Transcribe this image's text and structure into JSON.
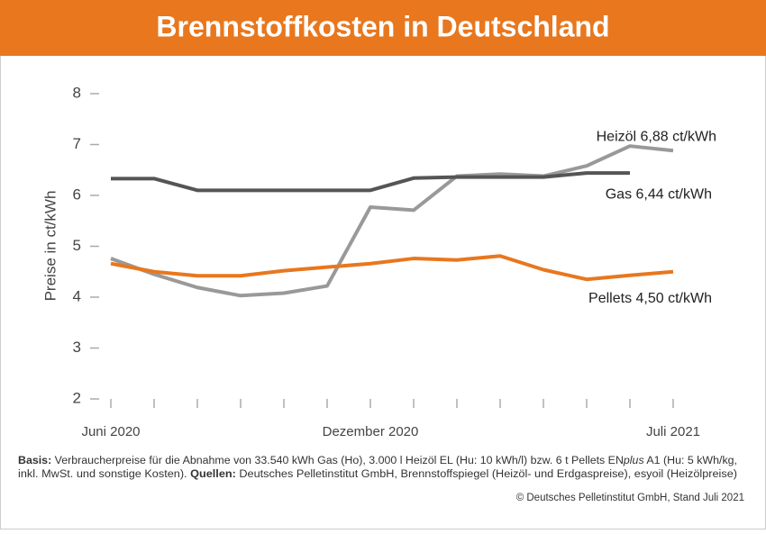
{
  "chart_data": {
    "type": "line",
    "title": "Brennstoffkosten in Deutschland",
    "ylabel": "Preise in ct/kWh",
    "categories": [
      "Juni 2020",
      null,
      null,
      null,
      null,
      null,
      "Dezember 2020",
      null,
      null,
      null,
      null,
      null,
      null,
      "Juli 2021"
    ],
    "ylim": [
      2,
      8
    ],
    "yticks": [
      2,
      3,
      4,
      5,
      6,
      7,
      8
    ],
    "series": [
      {
        "name": "Heizöl 6,88 ct/kWh",
        "color": "#999999",
        "values": [
          4.76,
          4.45,
          4.19,
          4.03,
          4.08,
          4.22,
          5.77,
          5.71,
          6.38,
          6.42,
          6.38,
          6.58,
          6.97,
          6.88
        ]
      },
      {
        "name": "Gas 6,44 ct/kWh",
        "color": "#555555",
        "values": [
          6.33,
          6.33,
          6.1,
          6.1,
          6.1,
          6.1,
          6.1,
          6.34,
          6.36,
          6.36,
          6.36,
          6.44,
          6.44,
          null
        ]
      },
      {
        "name": "Pellets 4,50 ct/kWh",
        "color": "#e8771e",
        "values": [
          4.66,
          4.5,
          4.42,
          4.42,
          4.52,
          4.59,
          4.66,
          4.76,
          4.73,
          4.81,
          4.54,
          4.35,
          4.43,
          4.5
        ]
      }
    ]
  },
  "footer": {
    "lines": [
      [
        {
          "text": "Basis:",
          "style": "bold"
        },
        {
          "text": " Verbraucherpreise für die Abnahme von 33.540 kWh Gas (Ho), 3.000 l Heizöl EL (Hu: 10 kWh/l) bzw. 6 t Pellets EN",
          "style": "normal"
        },
        {
          "text": "plus",
          "style": "italic"
        },
        {
          "text": " A1 (Hu: 5 kWh/kg,",
          "style": "normal"
        }
      ],
      [
        {
          "text": "inkl. MwSt. und sonstige Kosten). ",
          "style": "normal"
        },
        {
          "text": "Quellen:",
          "style": "bold"
        },
        {
          "text": " Deutsches Pelletinstitut GmbH, Brennstoffspiegel (Heizöl- und Erdgaspreise), esyoil (Heizölpreise)",
          "style": "normal"
        }
      ]
    ],
    "copyright": "© Deutsches Pelletinstitut GmbH, Stand Juli 2021"
  }
}
